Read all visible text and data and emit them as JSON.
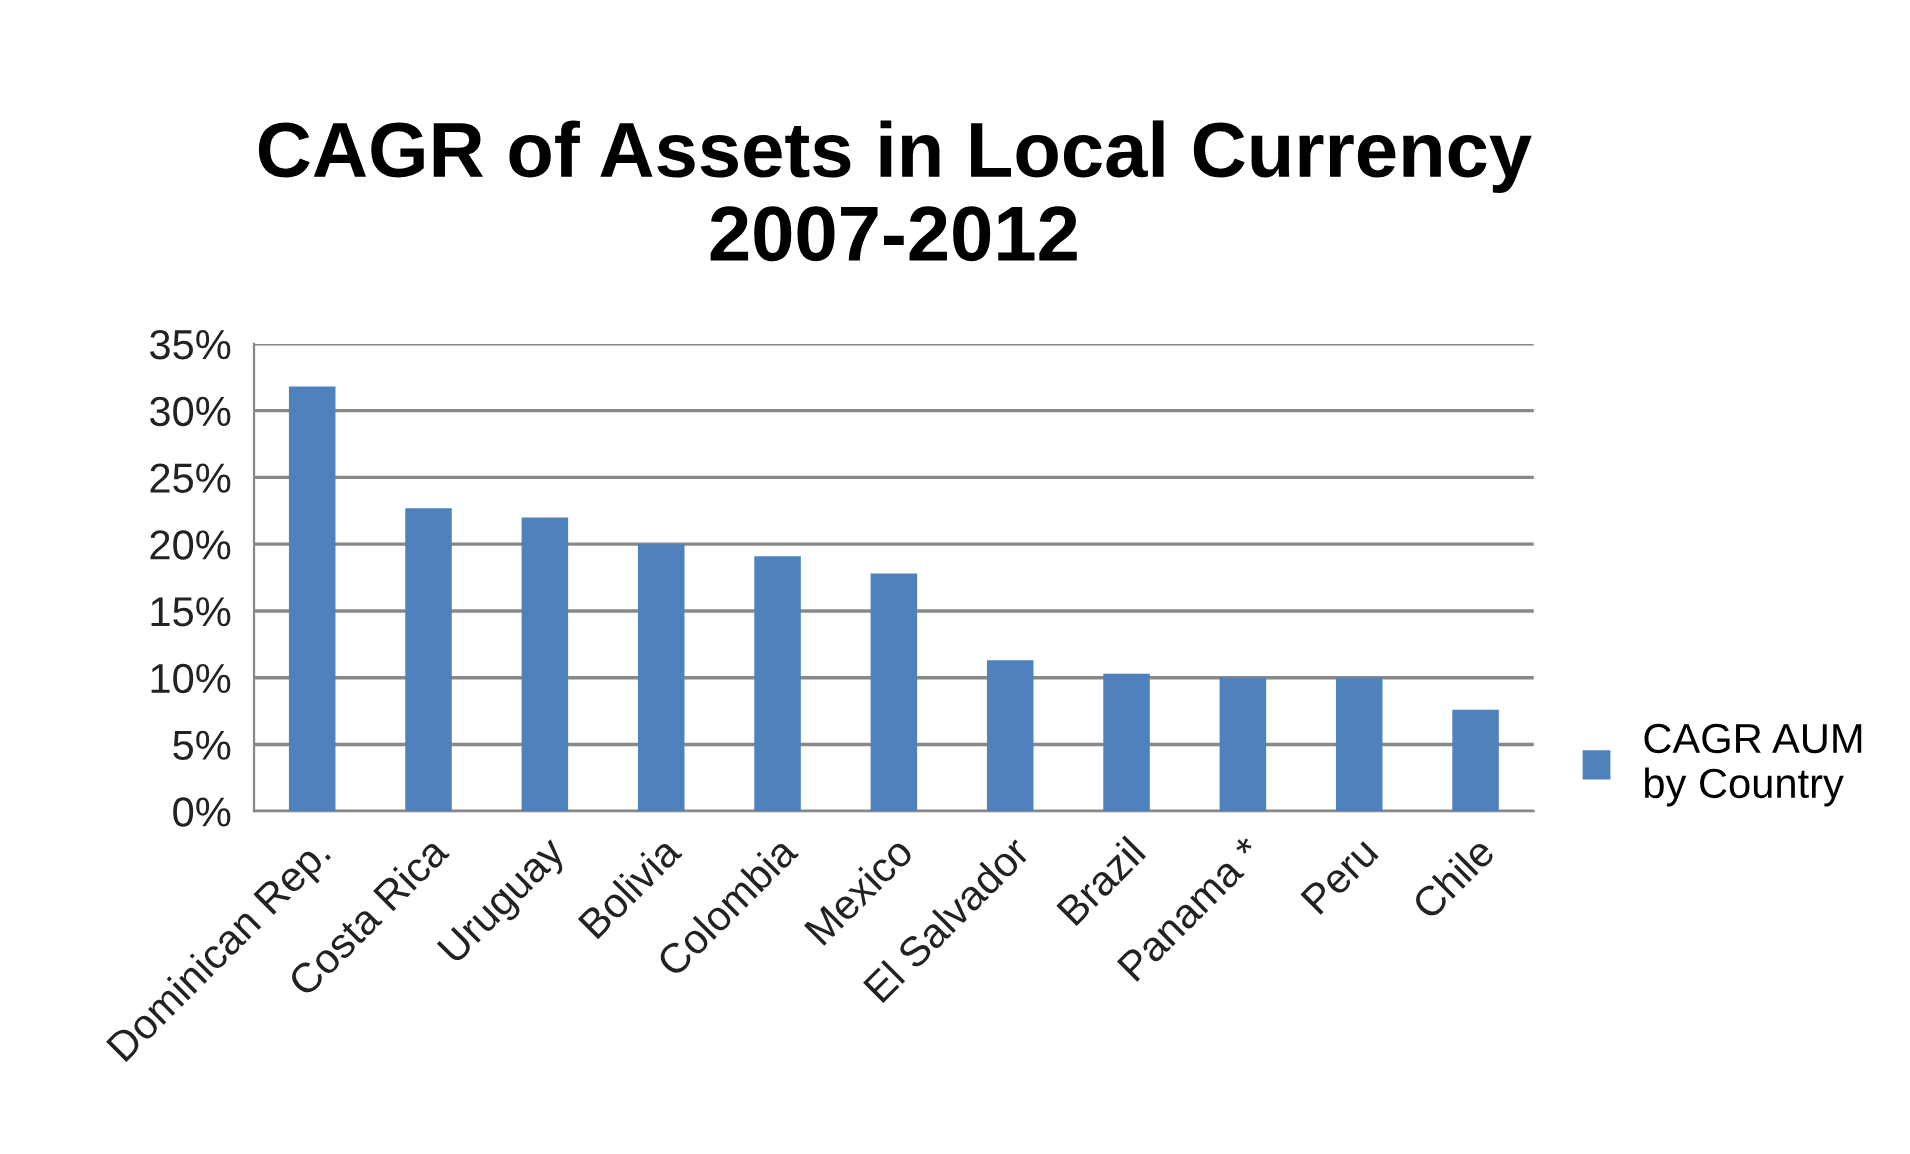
{
  "chart_data": {
    "type": "bar",
    "title": "CAGR of Assets in Local Currency\n2007-2012",
    "categories": [
      "Dominican Rep.",
      "Costa Rica",
      "Uruguay",
      "Bolivia",
      "Colombia",
      "Mexico",
      "El Salvador",
      "Brazil",
      "Panama *",
      "Peru",
      "Chile"
    ],
    "series": [
      {
        "name": "CAGR AUM\nby Country",
        "color": "#4f81bd",
        "values": [
          31.8,
          22.7,
          22.0,
          20.0,
          19.1,
          17.8,
          11.3,
          10.3,
          10.0,
          10.0,
          7.6
        ]
      }
    ],
    "ylim": [
      0,
      35
    ],
    "yticks": [
      {
        "value": 0,
        "label": "0%"
      },
      {
        "value": 5,
        "label": "5%"
      },
      {
        "value": 10,
        "label": "10%"
      },
      {
        "value": 15,
        "label": "15%"
      },
      {
        "value": 20,
        "label": "20%"
      },
      {
        "value": 25,
        "label": "25%"
      },
      {
        "value": 30,
        "label": "30%"
      },
      {
        "value": 35,
        "label": "35%"
      }
    ],
    "grid": "y",
    "legend": "right"
  }
}
